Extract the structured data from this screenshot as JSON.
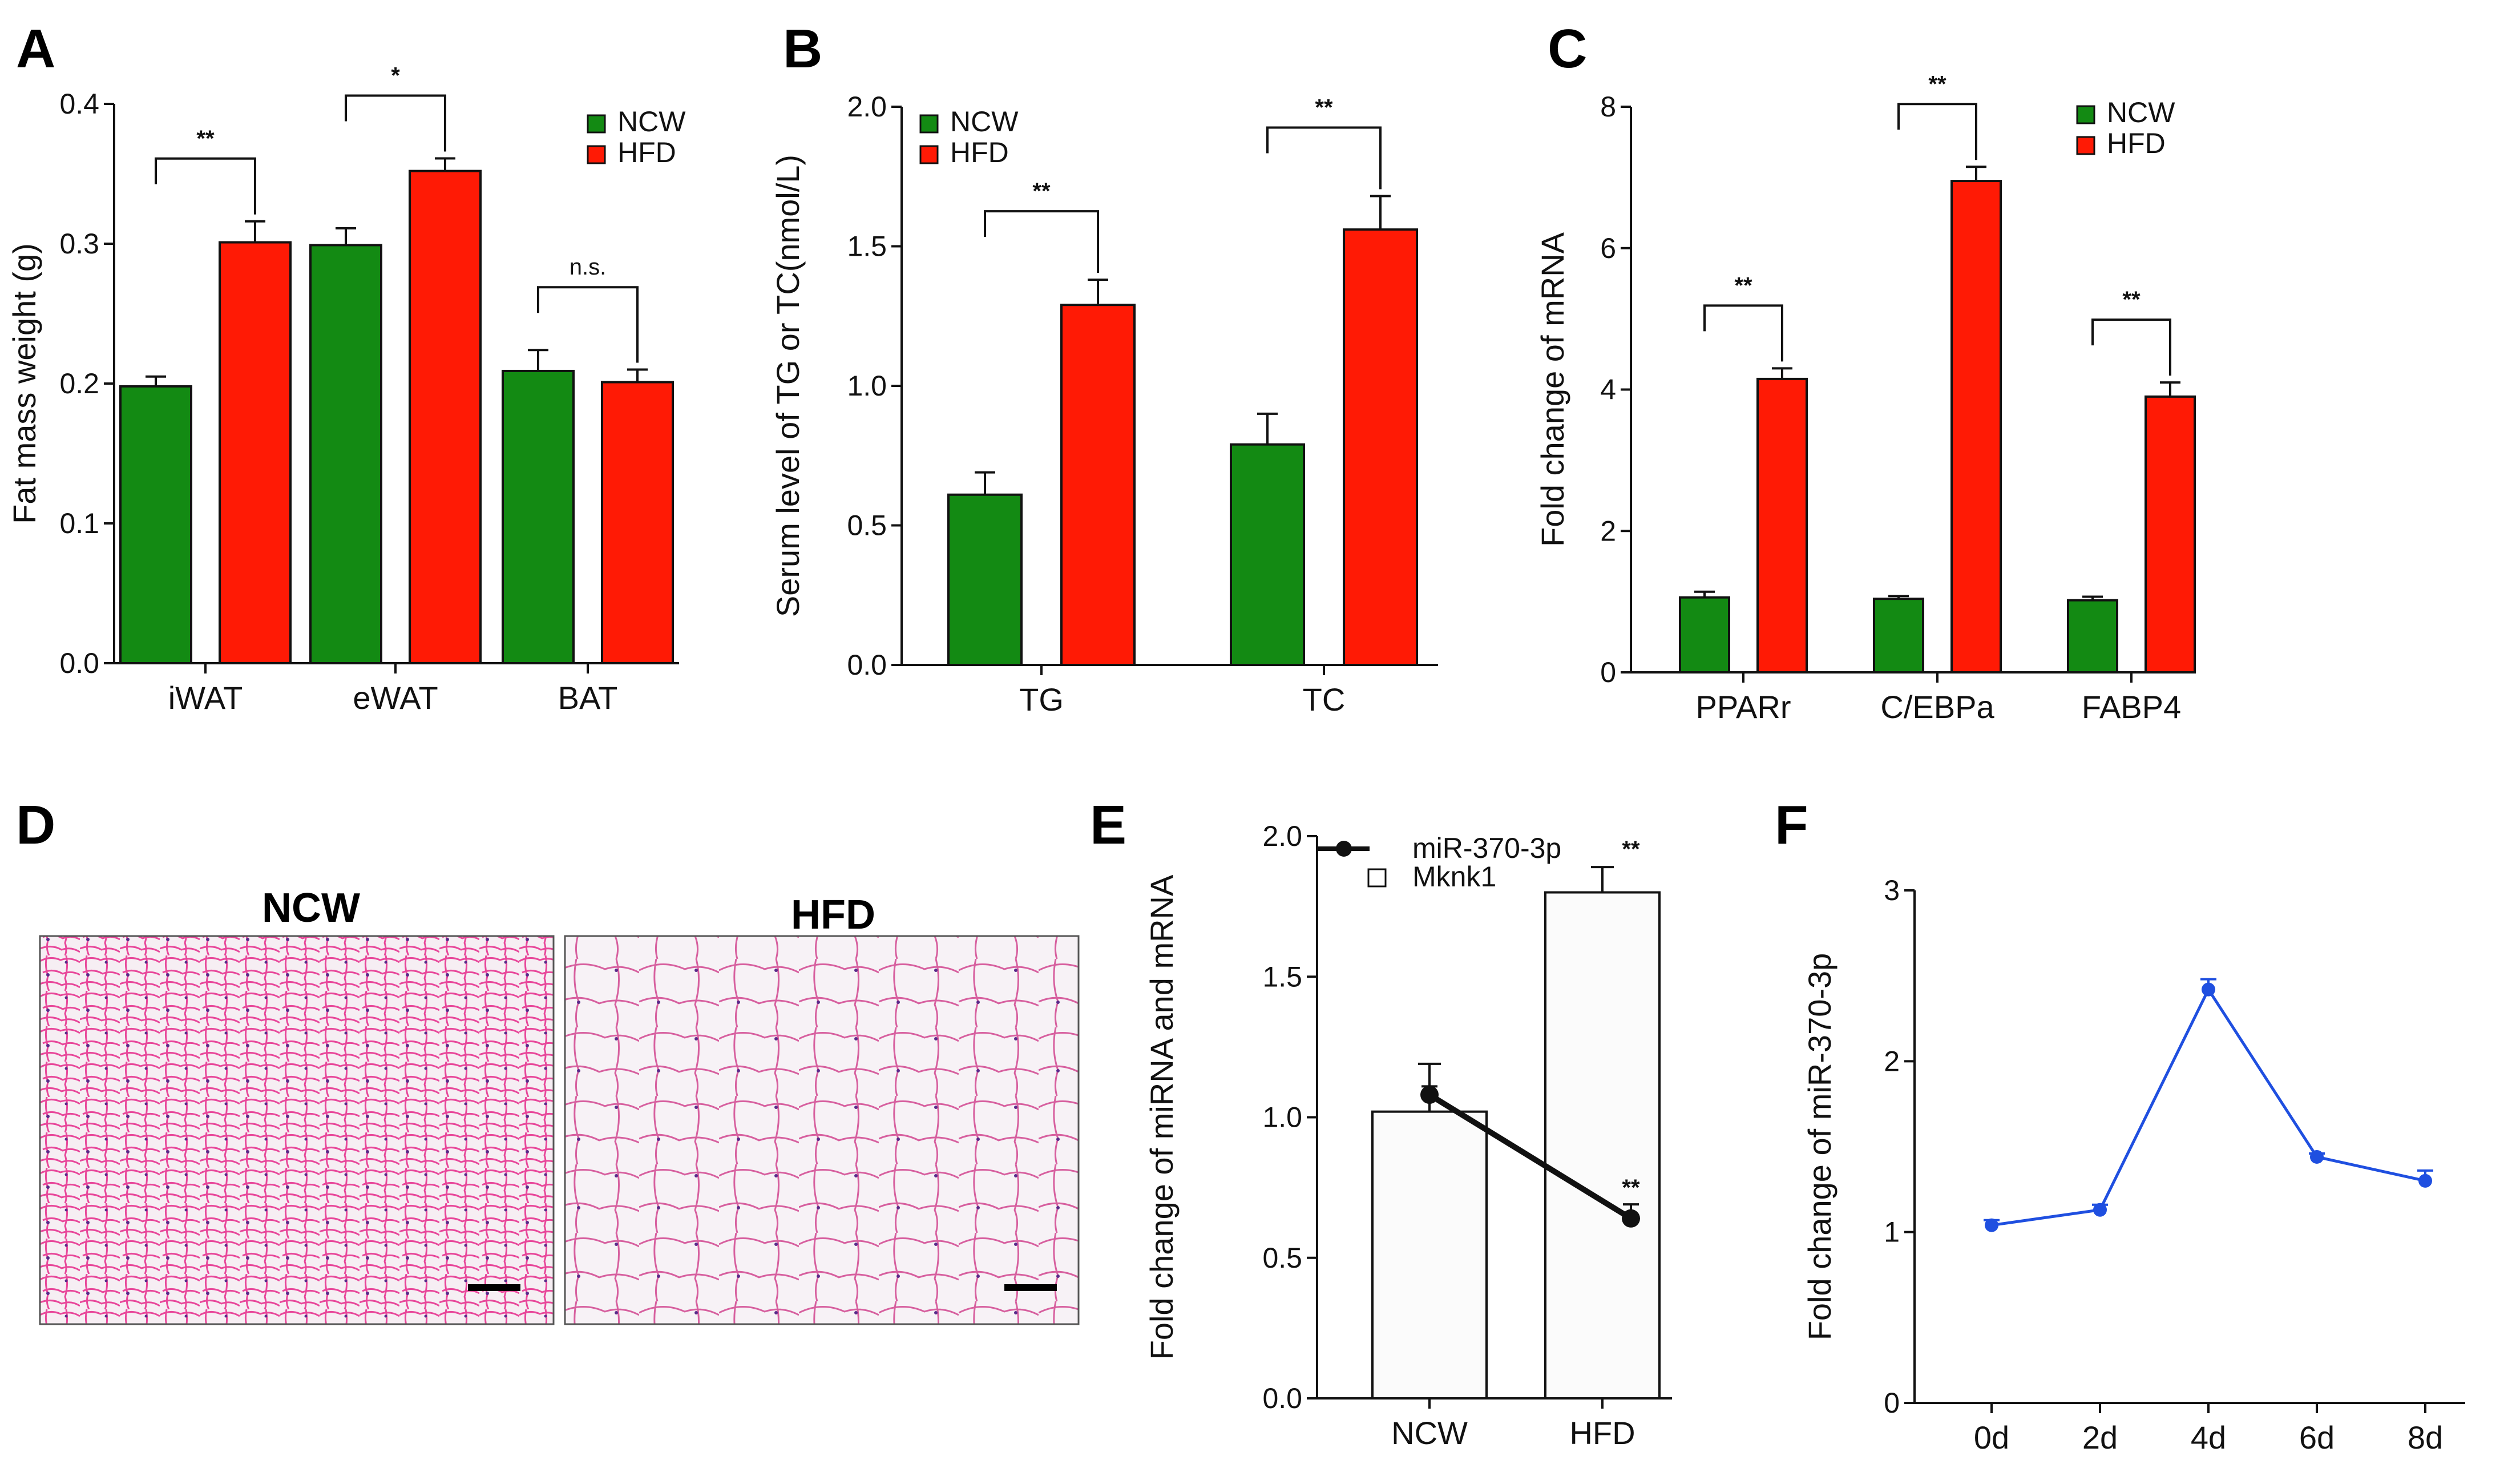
{
  "colors": {
    "ncw": "#138a13",
    "hfd": "#ff1a05",
    "axis": "#111111",
    "line_e": "#111111",
    "line_f": "#1f4fe0",
    "bar_e": "#fbfbfb"
  },
  "chart_data": [
    {
      "id": "A",
      "type": "bar",
      "panel_label": "A",
      "ylabel": "Fat mass weight (g)",
      "ylim": [
        0,
        0.4
      ],
      "yticks": [
        "0.0",
        "0.1",
        "0.2",
        "0.3",
        "0.4"
      ],
      "categories": [
        "iWAT",
        "eWAT",
        "BAT"
      ],
      "series": [
        {
          "name": "NCW",
          "values": [
            0.198,
            0.299,
            0.209
          ],
          "errors": [
            0.007,
            0.012,
            0.015
          ]
        },
        {
          "name": "HFD",
          "values": [
            0.301,
            0.352,
            0.201
          ],
          "errors": [
            0.015,
            0.009,
            0.009
          ]
        }
      ],
      "significance": [
        "**",
        "*",
        "n.s."
      ]
    },
    {
      "id": "B",
      "type": "bar",
      "panel_label": "B",
      "ylabel": "Serum level of TG or TC(nmol/L)",
      "ylim": [
        0,
        2.0
      ],
      "yticks": [
        "0.0",
        "0.5",
        "1.0",
        "1.5",
        "2.0"
      ],
      "categories": [
        "TG",
        "TC"
      ],
      "series": [
        {
          "name": "NCW",
          "values": [
            0.61,
            0.79
          ],
          "errors": [
            0.08,
            0.11
          ]
        },
        {
          "name": "HFD",
          "values": [
            1.29,
            1.56
          ],
          "errors": [
            0.09,
            0.12
          ]
        }
      ],
      "significance": [
        "**",
        "**"
      ]
    },
    {
      "id": "C",
      "type": "bar",
      "panel_label": "C",
      "ylabel": "Fold change of mRNA",
      "ylim": [
        0,
        8
      ],
      "yticks": [
        "0",
        "2",
        "4",
        "6",
        "8"
      ],
      "categories": [
        "PPARr",
        "C/EBPa",
        "FABP4"
      ],
      "series": [
        {
          "name": "NCW",
          "values": [
            1.06,
            1.04,
            1.02
          ],
          "errors": [
            0.08,
            0.04,
            0.05
          ]
        },
        {
          "name": "HFD",
          "values": [
            4.15,
            6.95,
            3.9
          ],
          "errors": [
            0.15,
            0.2,
            0.2
          ]
        }
      ],
      "significance": [
        "**",
        "**",
        "**"
      ]
    },
    {
      "id": "E",
      "type": "bar+line",
      "panel_label": "E",
      "ylabel": "Fold change of miRNA and mRNA",
      "ylim": [
        0,
        2.0
      ],
      "yticks": [
        "0.0",
        "0.5",
        "1.0",
        "1.5",
        "2.0"
      ],
      "categories": [
        "NCW",
        "HFD"
      ],
      "bar_series": {
        "name": "Mknk1",
        "values": [
          1.02,
          1.8
        ],
        "errors": [
          0.17,
          0.09
        ],
        "annotations": [
          "",
          "**"
        ]
      },
      "line_series": {
        "name": "miR-370-3p",
        "values": [
          1.08,
          0.64
        ],
        "errors": [
          0.03,
          0.05
        ],
        "annotations": [
          "",
          "**"
        ]
      }
    },
    {
      "id": "F",
      "type": "line",
      "panel_label": "F",
      "ylabel": "Fold change of miR-370-3p",
      "ylim": [
        0,
        3
      ],
      "yticks": [
        "0",
        "1",
        "2",
        "3"
      ],
      "categories": [
        "0d",
        "2d",
        "4d",
        "6d",
        "8d"
      ],
      "series": [
        {
          "name": "miR-370-3p",
          "values": [
            1.04,
            1.13,
            2.42,
            1.44,
            1.3
          ],
          "errors": [
            0.03,
            0.03,
            0.06,
            0.02,
            0.06
          ]
        }
      ]
    }
  ],
  "histology": {
    "panel_label": "D",
    "left_title": "NCW",
    "right_title": "HFD"
  }
}
